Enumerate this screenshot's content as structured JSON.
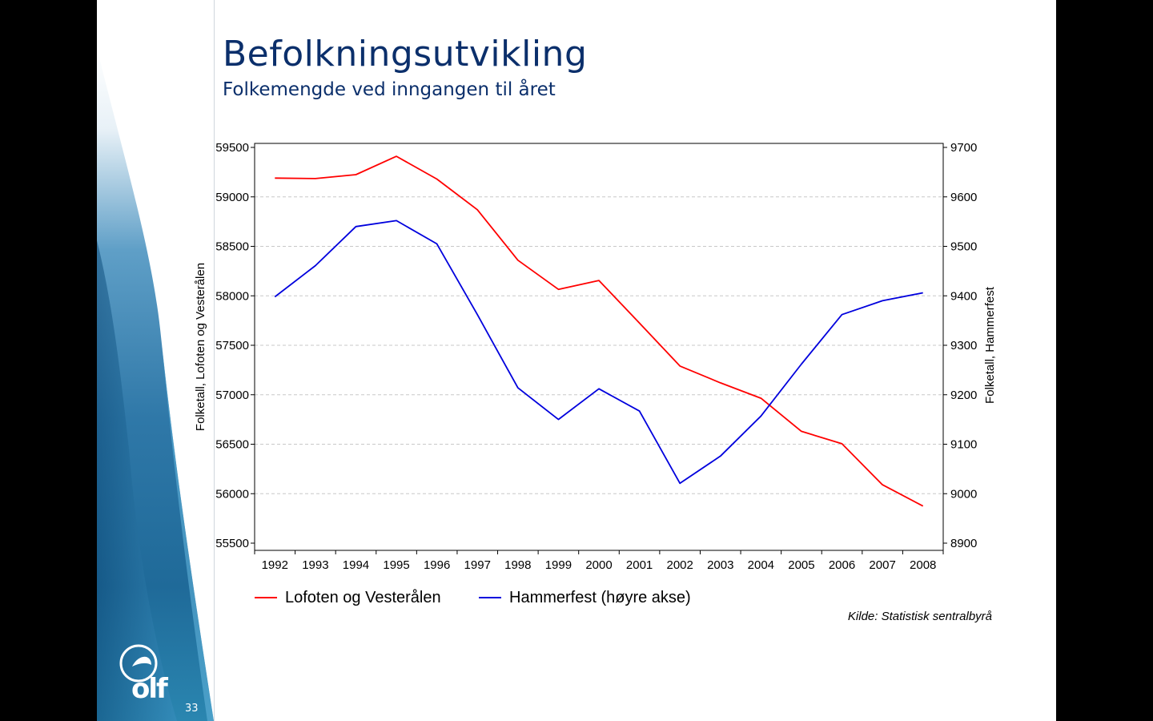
{
  "slide": {
    "title": "Befolkningsutvikling",
    "subtitle": "Folkemengde ved inngangen til året",
    "page_number": "33",
    "logo_text": "olf",
    "source": "Kilde: Statistisk sentralbyrå"
  },
  "colors": {
    "title": "#0b2f6b",
    "series_left": "#ff0000",
    "series_right": "#0000dd"
  },
  "chart_data": {
    "type": "line",
    "x": [
      "1992",
      "1993",
      "1994",
      "1995",
      "1996",
      "1997",
      "1998",
      "1999",
      "2000",
      "2001",
      "2002",
      "2003",
      "2004",
      "2005",
      "2006",
      "2007",
      "2008"
    ],
    "series": [
      {
        "name": "Lofoten og Vesterålen",
        "axis": "left",
        "color": "#ff0000",
        "values": [
          59190,
          59185,
          59225,
          59410,
          59180,
          58870,
          58360,
          58065,
          58155,
          57725,
          57290,
          57120,
          56965,
          56630,
          56505,
          56090,
          55875
        ]
      },
      {
        "name": "Hammerfest (høyre akse)",
        "axis": "right",
        "color": "#0000dd",
        "values": [
          9398,
          9461,
          9540,
          9552,
          9505,
          9362,
          9214,
          9150,
          9212,
          9167,
          9021,
          9076,
          9157,
          9262,
          9362,
          9390,
          9406
        ]
      }
    ],
    "ylabel": "Folketall, Lofoten og Vesterålen",
    "y2label": "Folketall, Hammerfest",
    "ylim": [
      55500,
      59500
    ],
    "y2lim": [
      8900,
      9700
    ],
    "yticks": [
      "59500",
      "59000",
      "58500",
      "58000",
      "57500",
      "57000",
      "56500",
      "56000",
      "55500"
    ],
    "y2ticks": [
      "9700",
      "9600",
      "9500",
      "9400",
      "9300",
      "9200",
      "9100",
      "9000",
      "8900"
    ],
    "grid": true,
    "legend_position": "bottom"
  }
}
